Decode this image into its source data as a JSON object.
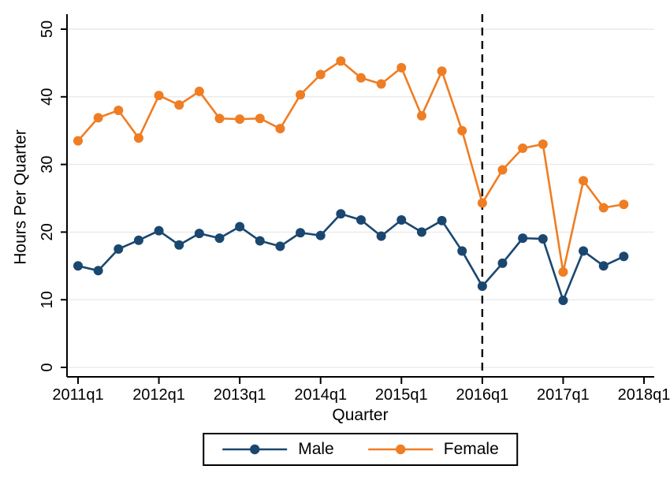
{
  "chart_data": {
    "type": "line",
    "title": "",
    "xlabel": "Quarter",
    "ylabel": "Hours Per Quarter",
    "categories": [
      "2011q1",
      "2011q2",
      "2011q3",
      "2011q4",
      "2012q1",
      "2012q2",
      "2012q3",
      "2012q4",
      "2013q1",
      "2013q2",
      "2013q3",
      "2013q4",
      "2014q1",
      "2014q2",
      "2014q3",
      "2014q4",
      "2015q1",
      "2015q2",
      "2015q3",
      "2015q4",
      "2016q1",
      "2016q2",
      "2016q3",
      "2016q4",
      "2017q1",
      "2017q2",
      "2017q3",
      "2017q4"
    ],
    "x_tick_labels": [
      "2011q1",
      "2012q1",
      "2013q1",
      "2014q1",
      "2015q1",
      "2016q1",
      "2017q1",
      "2018q1"
    ],
    "y_ticks": [
      0,
      10,
      20,
      30,
      40,
      50
    ],
    "ylim": [
      0,
      50
    ],
    "grid": "horizontal",
    "legend_position": "bottom-center",
    "series": [
      {
        "name": "Male",
        "color": "#1a476f",
        "values": [
          15.0,
          14.3,
          17.5,
          18.8,
          20.2,
          18.1,
          19.8,
          19.1,
          20.8,
          18.7,
          17.9,
          19.9,
          19.5,
          22.7,
          21.8,
          19.4,
          21.8,
          20.0,
          21.7,
          17.2,
          12.0,
          15.4,
          19.1,
          19.0,
          9.9,
          17.2,
          15.0,
          16.4
        ]
      },
      {
        "name": "Female",
        "color": "#ef7d23",
        "values": [
          33.5,
          36.9,
          38.0,
          33.9,
          40.2,
          38.8,
          40.8,
          36.8,
          36.7,
          36.8,
          35.3,
          40.3,
          43.3,
          45.3,
          42.8,
          41.9,
          44.3,
          37.2,
          43.8,
          35.0,
          24.3,
          29.2,
          32.4,
          33.0,
          14.1,
          27.6,
          23.6,
          24.1
        ]
      }
    ],
    "reference_line": {
      "x": "2016q1",
      "style": "dashed",
      "color": "#000000"
    }
  },
  "colors": {
    "grid": "#eaeaea",
    "axis": "#000000",
    "background": "#ffffff"
  }
}
